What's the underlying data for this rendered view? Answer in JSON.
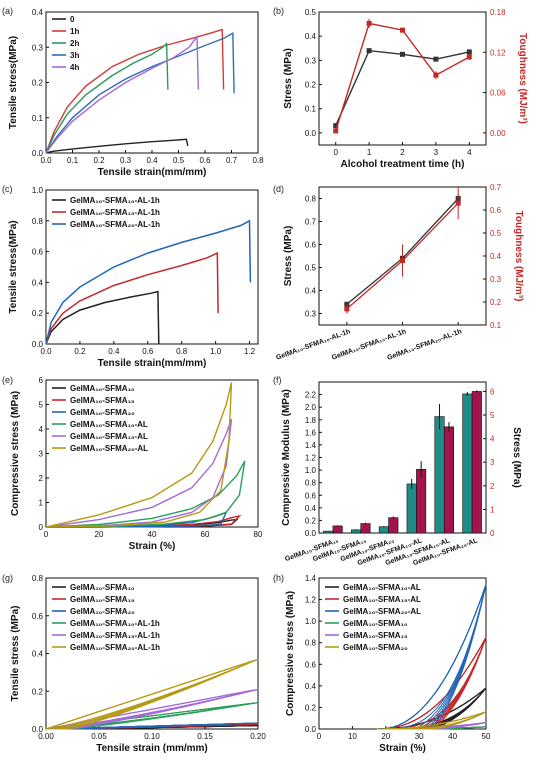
{
  "chart_data": [
    {
      "panel": "(a)",
      "type": "line",
      "xlabel": "Tensile strain(mm/mm)",
      "ylabel": "Tensile stress(MPa)",
      "xlim": [
        0,
        0.8
      ],
      "ylim": [
        0,
        0.4
      ],
      "xticks": [
        "0.0",
        "0.1",
        "0.2",
        "0.3",
        "0.4",
        "0.5",
        "0.6",
        "0.7",
        "0.8"
      ],
      "yticks": [
        "0.0",
        "0.1",
        "0.2",
        "0.3",
        "0.4"
      ],
      "legend": "top-left",
      "series": [
        {
          "name": "0",
          "color": "#222222",
          "x": [
            0,
            0.02,
            0.06,
            0.12,
            0.2,
            0.3,
            0.4,
            0.48,
            0.53,
            0.535
          ],
          "y": [
            0,
            0.004,
            0.008,
            0.013,
            0.019,
            0.026,
            0.032,
            0.036,
            0.039,
            0.02
          ]
        },
        {
          "name": "1h",
          "color": "#d43a3a",
          "x": [
            0,
            0.03,
            0.08,
            0.15,
            0.25,
            0.35,
            0.45,
            0.55,
            0.62,
            0.665,
            0.67
          ],
          "y": [
            0,
            0.06,
            0.13,
            0.19,
            0.245,
            0.28,
            0.305,
            0.325,
            0.34,
            0.35,
            0.18
          ]
        },
        {
          "name": "2h",
          "color": "#2a9a5a",
          "x": [
            0,
            0.03,
            0.08,
            0.15,
            0.25,
            0.33,
            0.4,
            0.44,
            0.455,
            0.46
          ],
          "y": [
            0,
            0.05,
            0.11,
            0.165,
            0.22,
            0.255,
            0.28,
            0.3,
            0.31,
            0.18
          ]
        },
        {
          "name": "3h",
          "color": "#2f6db5",
          "x": [
            0,
            0.04,
            0.1,
            0.2,
            0.3,
            0.4,
            0.5,
            0.6,
            0.67,
            0.705,
            0.71
          ],
          "y": [
            0,
            0.045,
            0.1,
            0.165,
            0.21,
            0.245,
            0.275,
            0.305,
            0.325,
            0.34,
            0.17
          ]
        },
        {
          "name": "4h",
          "color": "#a46ad8",
          "x": [
            0,
            0.04,
            0.1,
            0.2,
            0.3,
            0.4,
            0.48,
            0.54,
            0.57,
            0.575
          ],
          "y": [
            0,
            0.04,
            0.09,
            0.15,
            0.2,
            0.24,
            0.27,
            0.3,
            0.33,
            0.18
          ]
        }
      ]
    },
    {
      "panel": "(b)",
      "type": "line",
      "xlabel": "Alcohol treatment time (h)",
      "ylabel": "Stress (MPa)",
      "ylabel_right": "Toughness (MJ/m³)",
      "xlim": [
        -0.5,
        4.5
      ],
      "ylim": [
        -0.05,
        0.5
      ],
      "ylim_right": [
        -0.018,
        0.18
      ],
      "xticks": [
        "0",
        "1",
        "2",
        "3",
        "4"
      ],
      "yticks": [
        "0.0",
        "0.1",
        "0.2",
        "0.3",
        "0.4",
        "0.5"
      ],
      "yticks_right": [
        "0.00",
        "0.06",
        "0.12",
        "0.18"
      ],
      "series": [
        {
          "name": "Stress",
          "axis": "left",
          "color": "#333333",
          "x": [
            0,
            1,
            2,
            3,
            4
          ],
          "y": [
            0.03,
            0.34,
            0.325,
            0.305,
            0.335
          ],
          "err": [
            0.005,
            0.01,
            0.007,
            0.006,
            0.008
          ]
        },
        {
          "name": "Toughness",
          "axis": "right",
          "color": "#c62828",
          "x": [
            0,
            1,
            2,
            3,
            4
          ],
          "y": [
            0.003,
            0.163,
            0.153,
            0.086,
            0.113
          ],
          "err": [
            0.002,
            0.007,
            0.003,
            0.006,
            0.004
          ]
        }
      ]
    },
    {
      "panel": "(c)",
      "type": "line",
      "xlabel": "Tensile strain(mm/mm)",
      "ylabel": "Tensile stress(MPa)",
      "xlim": [
        0,
        1.25
      ],
      "ylim": [
        0,
        1.0
      ],
      "xticks": [
        "0.0",
        "0.2",
        "0.4",
        "0.6",
        "0.8",
        "1.0",
        "1.2"
      ],
      "yticks": [
        "0.0",
        "0.2",
        "0.4",
        "0.6",
        "0.8",
        "1.0"
      ],
      "legend": "top-left",
      "series": [
        {
          "name": "GelMA₁₀-SFMA₁₀-AL-1h",
          "color": "#222222",
          "x": [
            0,
            0.03,
            0.1,
            0.2,
            0.35,
            0.5,
            0.62,
            0.66,
            0.665
          ],
          "y": [
            0,
            0.08,
            0.16,
            0.22,
            0.27,
            0.305,
            0.33,
            0.34,
            0.0
          ]
        },
        {
          "name": "GelMA₁₀-SFMA₁₅-AL-1h",
          "color": "#c62828",
          "x": [
            0,
            0.03,
            0.1,
            0.2,
            0.4,
            0.6,
            0.8,
            0.95,
            1.01,
            1.015
          ],
          "y": [
            0,
            0.1,
            0.2,
            0.28,
            0.38,
            0.45,
            0.51,
            0.56,
            0.59,
            0.2
          ]
        },
        {
          "name": "GelMA₁₀-SFMA₂₀-AL-1h",
          "color": "#2266b8",
          "x": [
            0,
            0.03,
            0.1,
            0.2,
            0.4,
            0.6,
            0.8,
            1.0,
            1.15,
            1.2,
            1.205
          ],
          "y": [
            0,
            0.14,
            0.27,
            0.37,
            0.5,
            0.59,
            0.66,
            0.72,
            0.77,
            0.8,
            0.4
          ]
        }
      ]
    },
    {
      "panel": "(d)",
      "type": "line",
      "xlabel": "",
      "ylabel": "Stress (MPa)",
      "ylabel_right": "Toughness (MJ/m³)",
      "ylim": [
        0.25,
        0.85
      ],
      "ylim_right": [
        0.1,
        0.7
      ],
      "yticks": [
        "0.3",
        "0.4",
        "0.5",
        "0.6",
        "0.7",
        "0.8"
      ],
      "yticks_right": [
        "0.1",
        "0.2",
        "0.3",
        "0.4",
        "0.5",
        "0.6",
        "0.7"
      ],
      "categories": [
        "GelMA₁₀-SFMA₁₀-AL-1h",
        "GelMA₁₀-SFMA₁₅-AL-1h",
        "GelMA₁₀-SFMA₂₀-AL-1h"
      ],
      "series": [
        {
          "name": "Stress",
          "axis": "left",
          "color": "#333333",
          "values": [
            0.34,
            0.54,
            0.8
          ],
          "err": [
            0.01,
            0.02,
            0.02
          ]
        },
        {
          "name": "Toughness",
          "axis": "right",
          "color": "#c62828",
          "values": [
            0.17,
            0.38,
            0.63
          ],
          "err": [
            0.02,
            0.07,
            0.07
          ]
        }
      ]
    },
    {
      "panel": "(e)",
      "type": "line",
      "xlabel": "Strain (%)",
      "ylabel": "Compressive stress (MPa)",
      "xlim": [
        0,
        80
      ],
      "ylim": [
        0,
        6
      ],
      "xticks": [
        "0",
        "20",
        "40",
        "60",
        "80"
      ],
      "yticks": [
        "0",
        "1",
        "2",
        "3",
        "4",
        "5",
        "6"
      ],
      "legend": "top-left",
      "series": [
        {
          "name": "GelMA₁₀-SFMA₁₀",
          "color": "#222222",
          "x": [
            0,
            20,
            40,
            55,
            65,
            70,
            72,
            70,
            60,
            40,
            20,
            0
          ],
          "y": [
            0,
            0.01,
            0.03,
            0.08,
            0.18,
            0.28,
            0.3,
            0.1,
            0.04,
            0.015,
            0.005,
            0
          ]
        },
        {
          "name": "GelMA₁₀-SFMA₁₅",
          "color": "#c62828",
          "x": [
            0,
            20,
            40,
            55,
            65,
            70,
            73,
            70,
            60,
            40,
            20,
            0
          ],
          "y": [
            0,
            0.01,
            0.04,
            0.1,
            0.22,
            0.38,
            0.45,
            0.12,
            0.05,
            0.02,
            0.005,
            0
          ]
        },
        {
          "name": "GelMA₁₀-SFMA₂₀",
          "color": "#2266b8",
          "x": [
            0,
            20,
            40,
            55,
            63,
            67,
            68,
            66,
            58,
            40,
            20,
            0
          ],
          "y": [
            0,
            0.02,
            0.06,
            0.18,
            0.4,
            0.55,
            0.6,
            0.12,
            0.05,
            0.02,
            0.005,
            0
          ]
        },
        {
          "name": "GelMA₁₀-SFMA₁₀-AL",
          "color": "#2aa05a",
          "x": [
            0,
            20,
            40,
            55,
            65,
            72,
            75,
            73,
            68,
            60,
            45,
            25,
            0
          ],
          "y": [
            0,
            0.1,
            0.35,
            0.75,
            1.3,
            2.1,
            2.7,
            1.3,
            0.6,
            0.3,
            0.12,
            0.03,
            0
          ]
        },
        {
          "name": "GelMA₁₀-SFMA₁₅-AL",
          "color": "#a46ad8",
          "x": [
            0,
            20,
            40,
            55,
            63,
            68,
            70,
            68,
            63,
            55,
            40,
            20,
            0
          ],
          "y": [
            0,
            0.3,
            0.8,
            1.6,
            2.6,
            3.8,
            4.4,
            2.5,
            1.2,
            0.6,
            0.2,
            0.05,
            0
          ]
        },
        {
          "name": "GelMA₁₀-SFMA₂₀-AL",
          "color": "#b59a14",
          "x": [
            0,
            20,
            40,
            55,
            63,
            68,
            70,
            69,
            66,
            58,
            45,
            25,
            0
          ],
          "y": [
            0,
            0.5,
            1.2,
            2.2,
            3.5,
            5.0,
            5.9,
            3.5,
            1.5,
            0.6,
            0.2,
            0.05,
            0
          ]
        }
      ]
    },
    {
      "panel": "(f)",
      "type": "bar",
      "xlabel": "",
      "ylabel": "Compressive Modulus (MPa)",
      "ylabel_right": "Stress (MPa)",
      "ylim": [
        0,
        2.4
      ],
      "ylim_right": [
        0,
        6.4
      ],
      "yticks": [
        "0.0",
        "0.2",
        "0.4",
        "0.6",
        "0.8",
        "1.0",
        "1.2",
        "1.4",
        "1.6",
        "1.8",
        "2.0",
        "2.2"
      ],
      "yticks_right": [
        "0",
        "1",
        "2",
        "3",
        "4",
        "5",
        "6"
      ],
      "categories": [
        "GelMA₁₀-SFMA₁₀",
        "GelMA₁₀-SFMA₁₅",
        "GelMA₁₀-SFMA₂₀",
        "GelMA₁₀-SFMA₁₀-AL",
        "GelMA₁₀-SFMA₁₅-AL",
        "GelMA₁₀-SFMA₂₀-AL"
      ],
      "series": [
        {
          "name": "Compressive Modulus",
          "axis": "left",
          "color": "#1f8c86",
          "values": [
            0.03,
            0.05,
            0.1,
            0.78,
            1.85,
            2.21
          ],
          "err": [
            0.005,
            0.01,
            0.01,
            0.08,
            0.2,
            0.03
          ]
        },
        {
          "name": "Stress",
          "axis": "right",
          "color": "#a3144f",
          "values": [
            0.3,
            0.4,
            0.65,
            2.7,
            4.5,
            6.0
          ],
          "err": [
            0.03,
            0.04,
            0.05,
            0.35,
            0.2,
            0.05
          ]
        }
      ]
    },
    {
      "panel": "(g)",
      "type": "line",
      "xlabel": "Tensile strain (mm/mm)",
      "ylabel": "Tensile stress (MPa)",
      "xlim": [
        0,
        0.2
      ],
      "ylim": [
        0,
        0.8
      ],
      "xticks": [
        "0.00",
        "0.05",
        "0.10",
        "0.15",
        "0.20"
      ],
      "yticks": [
        "0.0",
        "0.2",
        "0.4",
        "0.6",
        "0.8"
      ],
      "legend": "top-left",
      "series": [
        {
          "name": "GelMA₁₀-SFMA₁₀",
          "color": "#222222",
          "top": 0.018
        },
        {
          "name": "GelMA₁₀-SFMA₁₅",
          "color": "#c62828",
          "top": 0.025
        },
        {
          "name": "GelMA₁₀-SFMA₂₀",
          "color": "#2266b8",
          "top": 0.032
        },
        {
          "name": "GelMA₁₀-SFMA₁₀-AL-1h",
          "color": "#2aa05a",
          "top": 0.14
        },
        {
          "name": "GelMA₁₀-SFMA₁₅-AL-1h",
          "color": "#a46ad8",
          "top": 0.21
        },
        {
          "name": "GelMA₁₀-SFMA₂₀-AL-1h",
          "color": "#b59a14",
          "top": 0.37
        }
      ]
    },
    {
      "panel": "(h)",
      "type": "line",
      "xlabel": "Strain (%)",
      "ylabel": "Compressive stress (MPa)",
      "xlim": [
        0,
        50
      ],
      "ylim": [
        0,
        1.4
      ],
      "xticks": [
        "0",
        "10",
        "20",
        "30",
        "40",
        "50"
      ],
      "yticks": [
        "0.0",
        "0.2",
        "0.4",
        "0.6",
        "0.8",
        "1.0",
        "1.2",
        "1.4"
      ],
      "legend": "top-left",
      "series": [
        {
          "name": "GelMA₁₀-SFMA₁₀-AL",
          "color": "#222222",
          "top": 0.38
        },
        {
          "name": "GelMA₁₀-SFMA₁₅-AL",
          "color": "#c62828",
          "top": 0.85
        },
        {
          "name": "GelMA₁₀-SFMA₂₀-AL",
          "color": "#2266b8",
          "top": 1.34
        },
        {
          "name": "GelMA₁₀-SFMA₁₀",
          "color": "#2aa05a",
          "top": 0.02
        },
        {
          "name": "GelMA₁₀-SFMA₁₅",
          "color": "#a46ad8",
          "top": 0.06
        },
        {
          "name": "GelMA₁₀-SFMA₂₀",
          "color": "#b59a14",
          "top": 0.16
        }
      ]
    }
  ]
}
